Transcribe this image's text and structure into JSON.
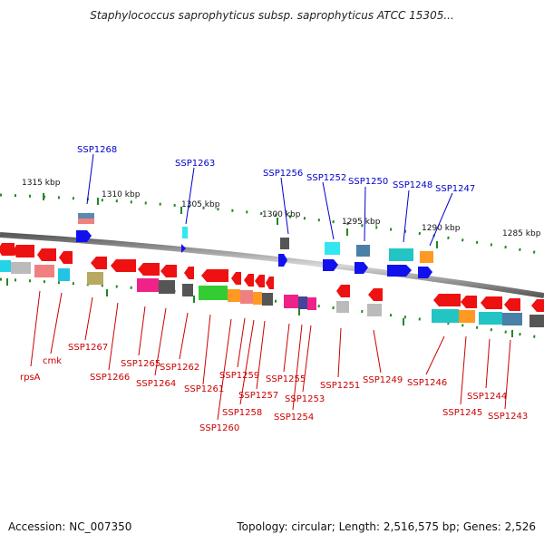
{
  "title": "Staphylococcus saprophyticus subsp. saprophyticus ATCC 15305...",
  "footer": {
    "accession": "Accession: NC_007350",
    "summary": "Topology: circular; Length: 2,516,575 bp; Genes: 2,526"
  },
  "scale": {
    "ticks": [
      {
        "label": "1315 kbp",
        "kbp": 1315
      },
      {
        "label": "1310 kbp",
        "kbp": 1310
      },
      {
        "label": "1305 kbp",
        "kbp": 1305
      },
      {
        "label": "1300 kbp",
        "kbp": 1300
      },
      {
        "label": "1295 kbp",
        "kbp": 1295
      },
      {
        "label": "1290 kbp",
        "kbp": 1290
      },
      {
        "label": "1285 kbp",
        "kbp": 1285
      }
    ]
  },
  "genes_top": [
    {
      "label": "SSP1268"
    },
    {
      "label": "SSP1263"
    },
    {
      "label": "SSP1256"
    },
    {
      "label": "SSP1252"
    },
    {
      "label": "SSP1250"
    },
    {
      "label": "SSP1248"
    },
    {
      "label": "SSP1247"
    }
  ],
  "genes_bottom": [
    {
      "label": "rpsA"
    },
    {
      "label": "cmk"
    },
    {
      "label": "SSP1267"
    },
    {
      "label": "SSP1266"
    },
    {
      "label": "SSP1265"
    },
    {
      "label": "SSP1264"
    },
    {
      "label": "SSP1262"
    },
    {
      "label": "SSP1261"
    },
    {
      "label": "SSP1260"
    },
    {
      "label": "SSP1259"
    },
    {
      "label": "SSP1258"
    },
    {
      "label": "SSP1257"
    },
    {
      "label": "SSP1255"
    },
    {
      "label": "SSP1254"
    },
    {
      "label": "SSP1253"
    },
    {
      "label": "SSP1251"
    },
    {
      "label": "SSP1249"
    },
    {
      "label": "SSP1246"
    },
    {
      "label": "SSP1245"
    },
    {
      "label": "SSP1244"
    },
    {
      "label": "SSP1243"
    }
  ],
  "colors": {
    "top_label": "#0000cc",
    "bottom_label": "#cc0000",
    "arrow_red": "#ee1111",
    "arrow_blue": "#1111ee",
    "tick_green": "#228822",
    "backbone": "#888888"
  }
}
